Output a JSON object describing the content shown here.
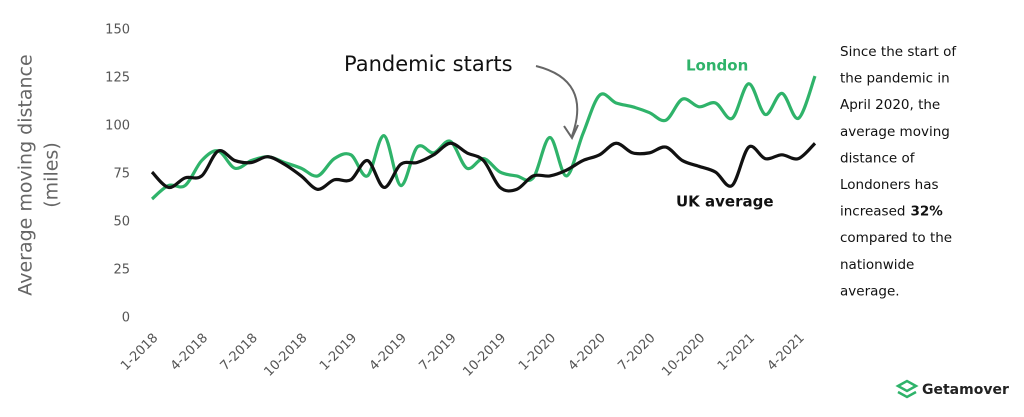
{
  "chart_data": {
    "type": "line",
    "y_label": [
      "Average moving distance",
      "(miles)"
    ],
    "categories": [
      "1-2018",
      null,
      null,
      "4-2018",
      null,
      null,
      "7-2018",
      null,
      null,
      "10-2018",
      null,
      null,
      "1-2019",
      null,
      null,
      "4-2019",
      null,
      null,
      "7-2019",
      null,
      null,
      "10-2019",
      null,
      null,
      "1-2020",
      null,
      null,
      "4-2020",
      null,
      null,
      "7-2020",
      null,
      null,
      "10-2020",
      null,
      null,
      "1-2021",
      null,
      null,
      "4-2021",
      null
    ],
    "series": [
      {
        "name": "London",
        "color": "#2fb36a",
        "values": [
          62,
          69,
          69,
          82,
          87,
          78,
          82,
          84,
          81,
          78,
          74,
          83,
          85,
          74,
          95,
          69,
          89,
          86,
          92,
          78,
          83,
          76,
          74,
          73,
          94,
          74,
          96,
          116,
          112,
          110,
          107,
          103,
          114,
          110,
          112,
          104,
          122,
          106,
          117,
          104,
          126
        ]
      },
      {
        "name": "UK average",
        "color": "#111111",
        "values": [
          76,
          68,
          73,
          74,
          87,
          82,
          81,
          84,
          80,
          74,
          67,
          72,
          72,
          82,
          68,
          80,
          81,
          85,
          91,
          86,
          82,
          68,
          67,
          74,
          74,
          77,
          82,
          85,
          91,
          86,
          86,
          89,
          82,
          79,
          76,
          69,
          89,
          83,
          85,
          83,
          91
        ]
      }
    ],
    "ylim": [
      0,
      150
    ],
    "yticks": [
      0,
      25,
      50,
      75,
      100,
      125,
      150
    ],
    "grid": false,
    "annotation": "Pandemic starts",
    "side_note": {
      "before": [
        "Since the start of",
        "the pandemic in",
        "April 2020, the",
        "average moving",
        "distance of",
        "Londoners has"
      ],
      "emphasis_prefix": "increased",
      "emphasis": "32%",
      "after": [
        "compared to the",
        "nationwide",
        "average."
      ]
    },
    "brand": "Getamover"
  }
}
